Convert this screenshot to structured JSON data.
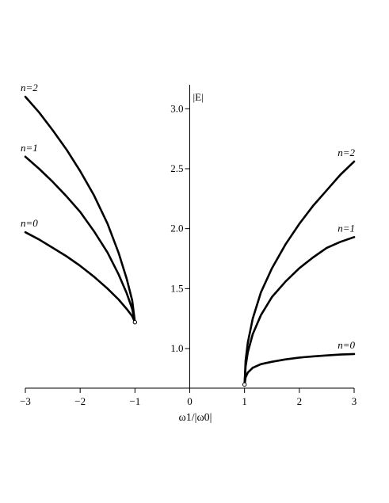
{
  "chart_data": {
    "type": "line",
    "xlabel": "ω1/|ω0|",
    "ylabel": "|E|",
    "xlim": [
      -3,
      3
    ],
    "ylim": [
      0.67,
      3.2
    ],
    "x_ticks": [
      -3,
      -2,
      -1,
      0,
      1,
      2,
      3
    ],
    "x_tick_labels": [
      "−3",
      "−2",
      "−1",
      "0",
      "1",
      "2",
      "3"
    ],
    "y_ticks": [
      1.0,
      1.5,
      2.0,
      2.5,
      3.0
    ],
    "y_tick_labels": [
      "1.0",
      "1.5",
      "2.0",
      "2.5",
      "3.0"
    ],
    "grid": false,
    "series": [
      {
        "name": "n=2",
        "branch": "left",
        "x": [
          -3,
          -2.75,
          -2.5,
          -2.25,
          -2,
          -1.75,
          -1.5,
          -1.3,
          -1.15,
          -1.05,
          -1
        ],
        "y": [
          3.1,
          2.97,
          2.82,
          2.66,
          2.48,
          2.28,
          2.04,
          1.8,
          1.58,
          1.4,
          1.22
        ]
      },
      {
        "name": "n=1",
        "branch": "left",
        "x": [
          -3,
          -2.75,
          -2.5,
          -2.25,
          -2,
          -1.75,
          -1.5,
          -1.3,
          -1.15,
          -1.05,
          -1
        ],
        "y": [
          2.6,
          2.5,
          2.39,
          2.27,
          2.14,
          1.98,
          1.8,
          1.62,
          1.46,
          1.33,
          1.22
        ]
      },
      {
        "name": "n=0",
        "branch": "left",
        "x": [
          -3,
          -2.75,
          -2.5,
          -2.25,
          -2,
          -1.75,
          -1.5,
          -1.3,
          -1.15,
          -1.05,
          -1
        ],
        "y": [
          1.97,
          1.91,
          1.84,
          1.77,
          1.69,
          1.6,
          1.5,
          1.41,
          1.33,
          1.27,
          1.22
        ]
      },
      {
        "name": "n=2",
        "branch": "right",
        "x": [
          1,
          1.02,
          1.06,
          1.15,
          1.3,
          1.5,
          1.75,
          2,
          2.25,
          2.5,
          2.75,
          3
        ],
        "y": [
          0.7,
          0.9,
          1.05,
          1.25,
          1.47,
          1.67,
          1.87,
          2.04,
          2.19,
          2.32,
          2.45,
          2.56
        ]
      },
      {
        "name": "n=1",
        "branch": "right",
        "x": [
          1,
          1.02,
          1.06,
          1.15,
          1.3,
          1.5,
          1.75,
          2,
          2.25,
          2.5,
          2.75,
          3
        ],
        "y": [
          0.7,
          0.85,
          0.97,
          1.12,
          1.28,
          1.43,
          1.56,
          1.67,
          1.76,
          1.84,
          1.89,
          1.93
        ]
      },
      {
        "name": "n=0",
        "branch": "right",
        "x": [
          1,
          1.02,
          1.06,
          1.15,
          1.3,
          1.5,
          1.75,
          2,
          2.25,
          2.5,
          2.75,
          3
        ],
        "y": [
          0.7,
          0.76,
          0.8,
          0.84,
          0.87,
          0.89,
          0.91,
          0.925,
          0.935,
          0.943,
          0.95,
          0.955
        ]
      }
    ],
    "endpoints": [
      {
        "x": -1,
        "y": 1.22
      },
      {
        "x": 1,
        "y": 0.7
      }
    ]
  }
}
